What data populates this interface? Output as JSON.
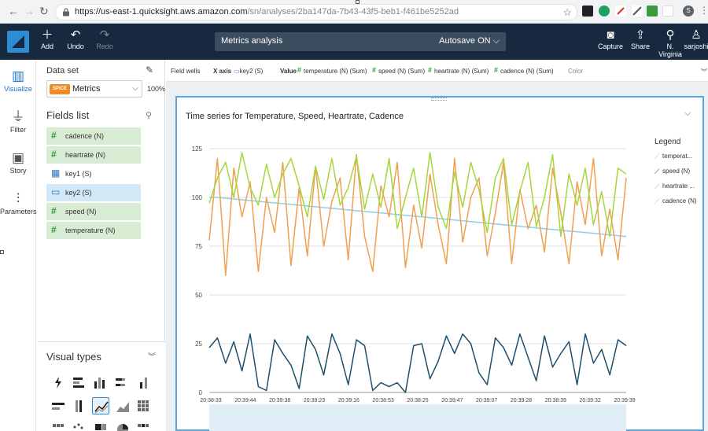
{
  "browser": {
    "url_host": "https://us-east-1.quicksight.aws.amazon.com",
    "url_path": "/sn/analyses/2ba147da-7b43-43f5-beb1-f461be5252ad",
    "profile_initial": "S"
  },
  "toolbar": {
    "add": "Add",
    "undo": "Undo",
    "redo": "Redo",
    "analysis_title": "Metrics analysis",
    "autosave": "Autosave ON",
    "capture": "Capture",
    "share": "Share",
    "region": "N. Virginia",
    "user": "sarjoshi"
  },
  "rail": {
    "visualize": "Visualize",
    "filter": "Filter",
    "story": "Story",
    "parameters": "Parameters"
  },
  "dataset": {
    "label": "Data set",
    "badge": "SPICE",
    "name": "Metrics",
    "percent": "100%"
  },
  "fields": {
    "title": "Fields list",
    "items": [
      {
        "name": "cadence (N)",
        "type": "measure"
      },
      {
        "name": "heartrate (N)",
        "type": "measure"
      },
      {
        "name": "key1 (S)",
        "type": "dimension"
      },
      {
        "name": "key2 (S)",
        "type": "selected"
      },
      {
        "name": "speed (N)",
        "type": "measure"
      },
      {
        "name": "temperature (N)",
        "type": "measure"
      }
    ]
  },
  "visual_types": {
    "title": "Visual types"
  },
  "wells": {
    "label": "Field wells",
    "x_axis_label": "X axis",
    "x_axis_value": "key2 (S)",
    "value_label": "Value",
    "values": [
      "temperature (N) (Sum)",
      "speed (N) (Sum)",
      "heartrate (N) (Sum)",
      "cadence (N) (Sum)"
    ],
    "color_label": "Color"
  },
  "visual": {
    "title": "Time series for Temperature, Speed, Heartrate, Cadence",
    "legend_title": "Legend",
    "legend_items": [
      {
        "label": "temperat...",
        "color": "#8fcfe9"
      },
      {
        "label": "speed (N)",
        "color": "#1f4e6b"
      },
      {
        "label": "heartrate ...",
        "color": "#f0a050"
      },
      {
        "label": "cadence (N)",
        "color": "#a6d63c"
      }
    ]
  },
  "chart_data": {
    "type": "line",
    "title": "Time series for Temperature, Speed, Heartrate, Cadence",
    "ylim": [
      0,
      125
    ],
    "yticks": [
      0,
      25,
      50,
      75,
      100,
      125
    ],
    "x_tick_labels": [
      "20:38:33",
      "20:39:44",
      "20:39:38",
      "20:39:23",
      "20:39:16",
      "20:38:53",
      "20:38:25",
      "20:39:47",
      "20:39:07",
      "20:39:28",
      "20:38:39",
      "20:39:32",
      "20:39:39"
    ],
    "grid": true,
    "legend_position": "right",
    "series": [
      {
        "name": "temperat...",
        "color": "#8fcfe9",
        "values": [
          100,
          100,
          99.6,
          99.2,
          98.8,
          98.4,
          98,
          97.6,
          97.2,
          96.8,
          96.4,
          96,
          95.6,
          95.2,
          94.8,
          94.4,
          94,
          93.6,
          93.2,
          92.8,
          92.4,
          92,
          91.6,
          91.2,
          90.8,
          90.4,
          90,
          89.6,
          89.2,
          88.8,
          88.4,
          88,
          87.6,
          87.2,
          86.8,
          86.4,
          86,
          85.6,
          85.2,
          84.8,
          84.4,
          84,
          83.6,
          83.2,
          82.8,
          82.4,
          82,
          81.6,
          81.2,
          80.8,
          80.4,
          80
        ]
      },
      {
        "name": "speed (N)",
        "color": "#1f4e6b",
        "values": [
          23,
          28,
          15,
          26,
          11,
          30,
          3,
          1,
          27,
          20,
          14,
          2,
          29,
          22,
          9,
          30,
          20,
          4,
          27,
          24,
          1,
          5,
          3,
          5,
          0,
          24,
          25,
          7,
          16,
          29,
          20,
          30,
          25,
          10,
          4,
          28,
          23,
          14,
          30,
          18,
          6,
          29,
          13,
          20,
          26,
          4,
          30,
          15,
          22,
          9,
          27,
          24
        ]
      },
      {
        "name": "heartrate ...",
        "color": "#f0a050",
        "values": [
          78,
          120,
          60,
          115,
          90,
          108,
          62,
          100,
          82,
          118,
          65,
          105,
          70,
          116,
          75,
          98,
          110,
          68,
          122,
          80,
          62,
          106,
          90,
          118,
          64,
          96,
          74,
          112,
          86,
          66,
          120,
          77,
          100,
          110,
          70,
          92,
          118,
          66,
          104,
          84,
          96,
          72,
          115,
          92,
          66,
          108,
          86,
          120,
          70,
          94,
          68,
          110
        ]
      },
      {
        "name": "cadence (N)",
        "color": "#a6d63c",
        "values": [
          97,
          110,
          118,
          100,
          123,
          105,
          96,
          117,
          100,
          112,
          120,
          106,
          90,
          116,
          99,
          120,
          96,
          105,
          121,
          94,
          112,
          95,
          120,
          84,
          100,
          115,
          90,
          123,
          95,
          84,
          113,
          95,
          118,
          104,
          82,
          110,
          120,
          86,
          103,
          118,
          85,
          100,
          122,
          80,
          112,
          96,
          115,
          86,
          103,
          80,
          115,
          112
        ]
      }
    ]
  }
}
